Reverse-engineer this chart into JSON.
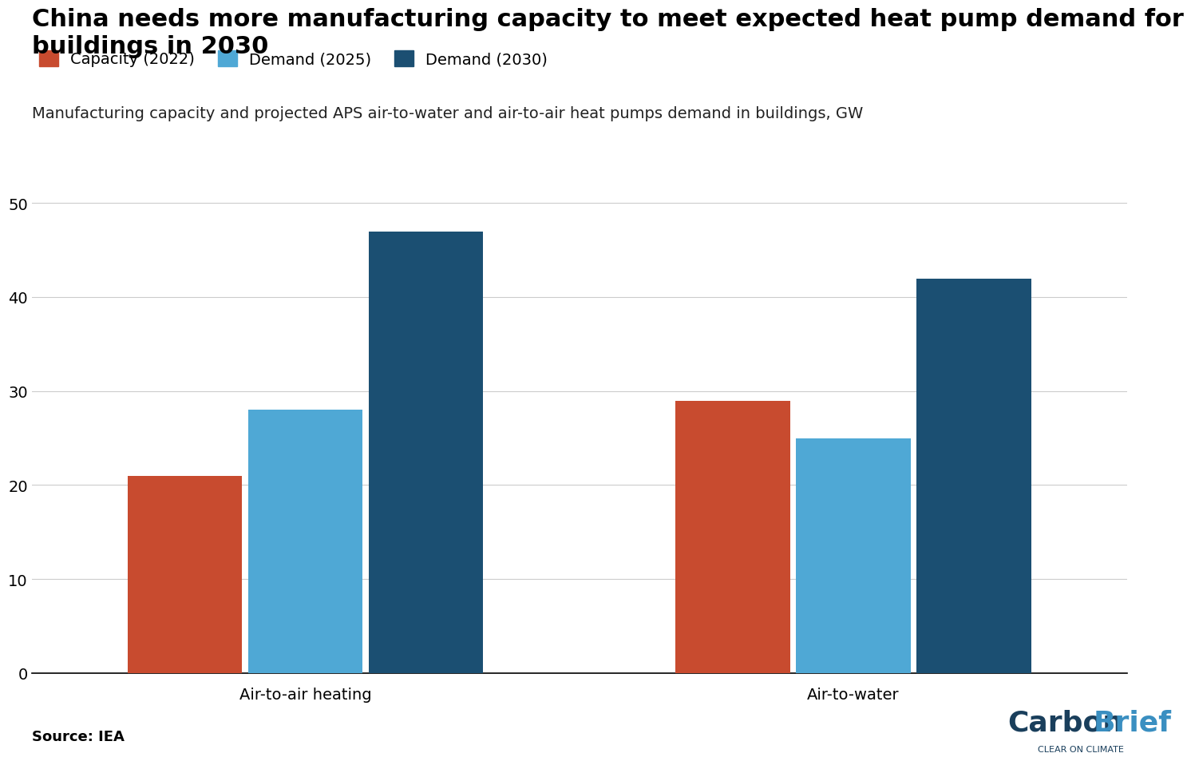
{
  "title": "China needs more manufacturing capacity to meet expected heat pump demand for\nbuildings in 2030",
  "subtitle": "Manufacturing capacity and projected APS air-to-water and air-to-air heat pumps demand in buildings, GW",
  "source": "Source: IEA",
  "categories": [
    "Air-to-air heating",
    "Air-to-water"
  ],
  "series": {
    "Capacity (2022)": [
      21,
      29
    ],
    "Demand (2025)": [
      28,
      25
    ],
    "Demand (2030)": [
      47,
      42
    ]
  },
  "colors": {
    "Capacity (2022)": "#C84B2F",
    "Demand (2025)": "#4FA8D5",
    "Demand (2030)": "#1B4F72"
  },
  "ylim": [
    0,
    55
  ],
  "yticks": [
    0,
    10,
    20,
    30,
    40,
    50
  ],
  "bar_width": 0.22,
  "background_color": "#FFFFFF",
  "title_fontsize": 22,
  "subtitle_fontsize": 14,
  "legend_fontsize": 14,
  "tick_fontsize": 14,
  "source_fontsize": 13,
  "carbonbrief_subtext": "CLEAR ON CLIMATE",
  "carbonbrief_color_carbon": "#1A3F5C",
  "carbonbrief_color_brief": "#3A8FC1"
}
